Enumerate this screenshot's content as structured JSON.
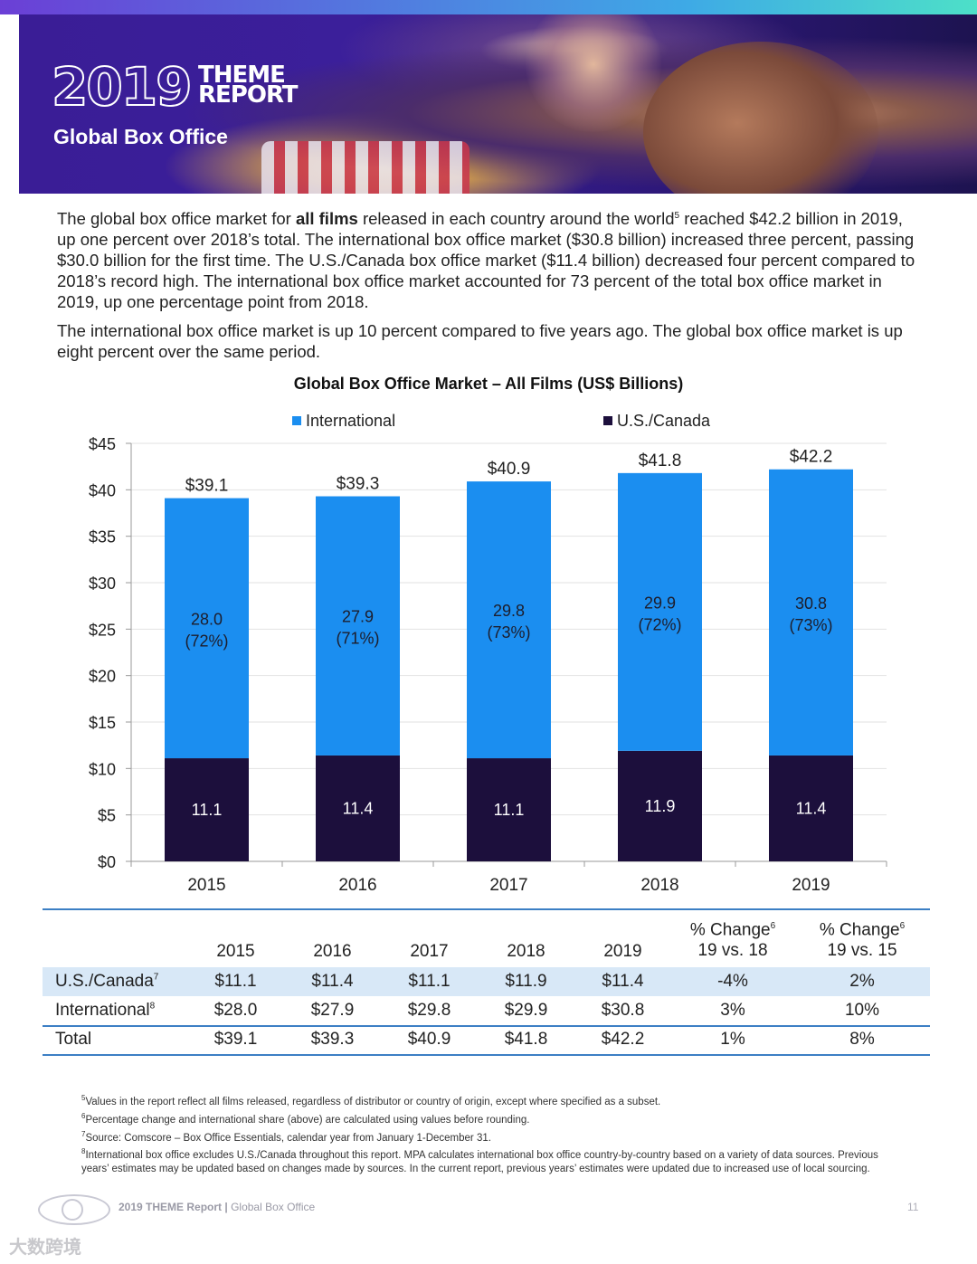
{
  "header": {
    "year": "2019",
    "theme_line1": "THEME",
    "theme_line2": "REPORT",
    "subtitle": "Global Box Office"
  },
  "intro": {
    "p1_a": "The global box office market for ",
    "p1_bold": "all films",
    "p1_b": " released in each country around the world",
    "p1_sup": "5",
    "p1_c": " reached $42.2 billion in 2019, up one percent over 2018’s total. The international box office market ($30.8 billion) increased three percent, passing $30.0 billion for the first time. The U.S./Canada box office market ($11.4 billion) decreased four percent compared to 2018’s record high. The international box office market accounted for 73 percent of the total box office market in 2019, up one percentage point from 2018.",
    "p2": "The international box office market is up 10 percent compared to five years ago. The global box office market is up eight percent over the same period."
  },
  "chart_data": {
    "type": "bar",
    "stacked": true,
    "title": "Global Box Office Market – All Films (US$ Billions)",
    "categories": [
      "2015",
      "2016",
      "2017",
      "2018",
      "2019"
    ],
    "series": [
      {
        "name": "U.S./Canada",
        "color": "#1c0f3c",
        "values": [
          11.1,
          11.4,
          11.1,
          11.9,
          11.4
        ],
        "labels": [
          "11.1",
          "11.4",
          "11.1",
          "11.9",
          "11.4"
        ]
      },
      {
        "name": "International",
        "color": "#1b8ef0",
        "values": [
          28.0,
          27.9,
          29.8,
          29.9,
          30.8
        ],
        "labels": [
          "28.0",
          "27.9",
          "29.8",
          "29.9",
          "30.8"
        ],
        "shares": [
          "(72%)",
          "(71%)",
          "(73%)",
          "(72%)",
          "(73%)"
        ]
      }
    ],
    "totals": [
      39.1,
      39.3,
      40.9,
      41.8,
      42.2
    ],
    "total_labels": [
      "$39.1",
      "$39.3",
      "$40.9",
      "$41.8",
      "$42.2"
    ],
    "legend": [
      "International",
      "U.S./Canada"
    ],
    "legend_position": "top",
    "yticks": [
      "$0",
      "$5",
      "$10",
      "$15",
      "$20",
      "$25",
      "$30",
      "$35",
      "$40",
      "$45"
    ],
    "ylim": [
      0,
      45
    ],
    "grid": true,
    "xlabel": "",
    "ylabel": ""
  },
  "table": {
    "headers": [
      "",
      "2015",
      "2016",
      "2017",
      "2018",
      "2019"
    ],
    "change_header_a": "% Change",
    "change_header_b": "19 vs. 18",
    "change_header2_a": "% Change",
    "change_header2_b": "19 vs. 15",
    "change_sup": "6",
    "rows": [
      {
        "label": "U.S./Canada",
        "sup": "7",
        "cells": [
          "$11.1",
          "$11.4",
          "$11.1",
          "$11.9",
          "$11.4",
          "-4%",
          "2%"
        ]
      },
      {
        "label": "International",
        "sup": "8",
        "cells": [
          "$28.0",
          "$27.9",
          "$29.8",
          "$29.9",
          "$30.8",
          "3%",
          "10%"
        ]
      },
      {
        "label": "Total",
        "sup": "",
        "cells": [
          "$39.1",
          "$39.3",
          "$40.9",
          "$41.8",
          "$42.2",
          "1%",
          "8%"
        ]
      }
    ]
  },
  "footnotes": [
    {
      "num": "5",
      "text": "Values in the report reflect all films released, regardless of distributor or country of origin, except where specified as a subset."
    },
    {
      "num": "6",
      "text": "Percentage change and international share (above) are calculated using values before rounding."
    },
    {
      "num": "7",
      "text": "Source: Comscore – Box Office Essentials, calendar year from January 1-December 31."
    },
    {
      "num": "8",
      "text": "International box office excludes U.S./Canada throughout this report. MPA calculates international box office country-by-country based on a variety of data sources. Previous years’ estimates may be updated based on changes made by sources. In the current report, previous years’ estimates were updated due to increased use of local sourcing."
    }
  ],
  "footer": {
    "report": "2019 THEME Report",
    "section": "Global Box Office",
    "page": "11"
  },
  "watermark": "大数跨境",
  "colors": {
    "international": "#1b8ef0",
    "us_canada": "#1c0f3c",
    "table_highlight": "#d8e8f7",
    "rule": "#3c7fc4"
  }
}
